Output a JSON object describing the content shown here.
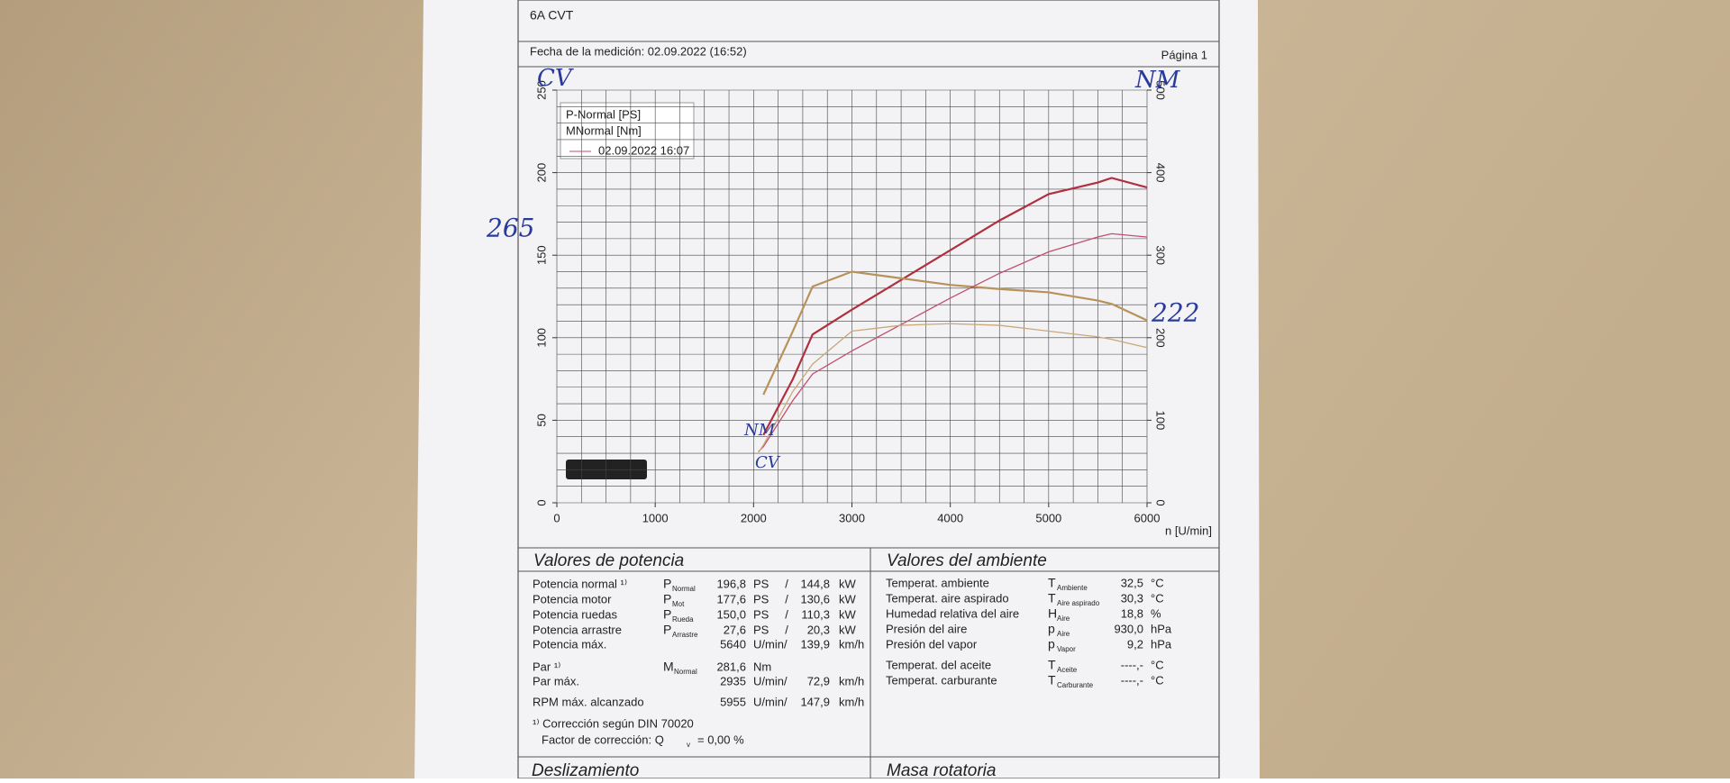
{
  "header": {
    "title": "6A CVT",
    "date": "Fecha de la medición: 02.09.2022 (16:52)",
    "page": "Página 1"
  },
  "chart_data": {
    "type": "line",
    "x": [
      2050,
      2100,
      2400,
      2600,
      3000,
      3500,
      4000,
      4500,
      5000,
      5500,
      5640,
      6000
    ],
    "series": [
      {
        "name": "P-Normal [PS]",
        "color": "#b0303f",
        "values": [
          null,
          41,
          75,
          102,
          117,
          135,
          153,
          171,
          187,
          194,
          196.8,
          191
        ]
      },
      {
        "name": "MNormal [Nm]",
        "color": "#b8925a",
        "axis": "y2",
        "values": [
          null,
          131,
          208,
          262,
          280,
          272,
          264,
          259,
          255,
          245,
          241,
          221
        ]
      },
      {
        "name": "02.09.2022 16:07",
        "color": "#c0506a",
        "values": [
          31,
          34,
          62,
          78,
          92,
          108,
          124,
          139,
          152,
          161,
          163,
          161
        ],
        "torque_color": "#c9a877",
        "torque": [
          61,
          70,
          135,
          168,
          208,
          215,
          217,
          215,
          208,
          201,
          198,
          188
        ]
      }
    ],
    "xlim": [
      0,
      6000
    ],
    "xticks": [
      0,
      1000,
      2000,
      3000,
      4000,
      5000,
      6000
    ],
    "ylim": [
      0,
      250
    ],
    "yticks": [
      0,
      50,
      100,
      150,
      200,
      250
    ],
    "y2lim": [
      0,
      500
    ],
    "y2ticks": [
      0,
      100,
      200,
      300,
      400,
      500
    ],
    "xlabel": "n [U/min]",
    "grid": true,
    "annotations": [
      "CV",
      "NM",
      "265",
      "222",
      "NM",
      "CV"
    ]
  },
  "potencia": {
    "title": "Valores de potencia",
    "rows": [
      {
        "color": "#b0303f",
        "cells": [
          "Potencia normal ¹⁾",
          "P",
          "Normal",
          "196,8",
          "PS",
          "/",
          "144,8",
          "kW"
        ]
      },
      {
        "color": "#b0303f",
        "cells": [
          "Potencia motor",
          "P",
          "Mot",
          "177,6",
          "PS",
          "/",
          "130,6",
          "kW"
        ]
      },
      {
        "color": "#2a4fa0",
        "cells": [
          "Potencia ruedas",
          "P",
          "Rueda",
          "150,0",
          "PS",
          "/",
          "110,3",
          "kW"
        ]
      },
      {
        "color": "#2f7a3a",
        "cells": [
          "Potencia arrastre",
          "P",
          "Arrastre",
          "27,6",
          "PS",
          "/",
          "20,3",
          "kW"
        ]
      },
      {
        "color": "#222",
        "cells": [
          "Potencia máx.",
          "5640",
          "U/min/",
          "139,9",
          "km/h"
        ]
      },
      {
        "color": "#b8925a",
        "cells": [
          "Par ¹⁾",
          "M",
          "Normal",
          "281,6",
          "Nm"
        ]
      },
      {
        "color": "#222",
        "cells": [
          "Par máx.",
          "2935",
          "U/min/",
          "72,9",
          "km/h"
        ]
      },
      {
        "color": "#222",
        "cells": [
          "RPM máx. alcanzado",
          "5955",
          "U/min/",
          "147,9",
          "km/h"
        ]
      }
    ],
    "note": "¹⁾ Corrección según DIN 70020",
    "factor": "Factor de corrección: Q",
    "factor_sub": "v",
    "factor_value": "=   0,00 %"
  },
  "ambiente": {
    "title": "Valores del ambiente",
    "rows": [
      [
        "Temperat. ambiente",
        "T",
        "Ambiente",
        "32,5",
        "°C"
      ],
      [
        "Temperat. aire aspirado",
        "T",
        "Aire aspirado",
        "30,3",
        "°C"
      ],
      [
        "Humedad relativa del aire",
        "H",
        "Aire",
        "18,8",
        "%"
      ],
      [
        "Presión del aire",
        "p",
        "Aire",
        "930,0",
        "hPa"
      ],
      [
        "Presión del vapor",
        "p",
        "Vapor",
        "9,2",
        "hPa"
      ],
      [
        "Temperat. del aceite",
        "T",
        "Aceite",
        "----,-",
        "°C"
      ],
      [
        "Temperat. carburante",
        "T",
        "Carburante",
        "----,-",
        "°C"
      ]
    ]
  },
  "bottom": {
    "left": "Deslizamiento",
    "right": "Masa rotatoria"
  }
}
